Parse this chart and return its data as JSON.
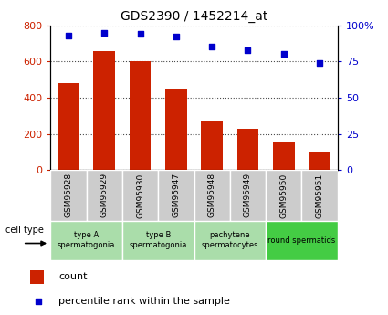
{
  "title": "GDS2390 / 1452214_at",
  "samples": [
    "GSM95928",
    "GSM95929",
    "GSM95930",
    "GSM95947",
    "GSM95948",
    "GSM95949",
    "GSM95950",
    "GSM95951"
  ],
  "counts": [
    480,
    655,
    600,
    450,
    275,
    230,
    160,
    100
  ],
  "percentiles": [
    93,
    95,
    94,
    92,
    85,
    83,
    80,
    74
  ],
  "ylim_left": [
    0,
    800
  ],
  "ylim_right": [
    0,
    100
  ],
  "yticks_left": [
    0,
    200,
    400,
    600,
    800
  ],
  "yticks_right": [
    0,
    25,
    50,
    75,
    100
  ],
  "bar_color": "#cc2200",
  "dot_color": "#0000cc",
  "cell_types": [
    {
      "label": "type A\nspermatogonia",
      "start": 0,
      "end": 2,
      "color": "#aaddaa"
    },
    {
      "label": "type B\nspermatogonia",
      "start": 2,
      "end": 4,
      "color": "#aaddaa"
    },
    {
      "label": "pachytene\nspermatocytes",
      "start": 4,
      "end": 6,
      "color": "#aaddaa"
    },
    {
      "label": "round spermatids",
      "start": 6,
      "end": 8,
      "color": "#44cc44"
    }
  ],
  "sample_box_color": "#cccccc",
  "legend_count_label": "count",
  "legend_percentile_label": "percentile rank within the sample",
  "cell_type_label": "cell type"
}
